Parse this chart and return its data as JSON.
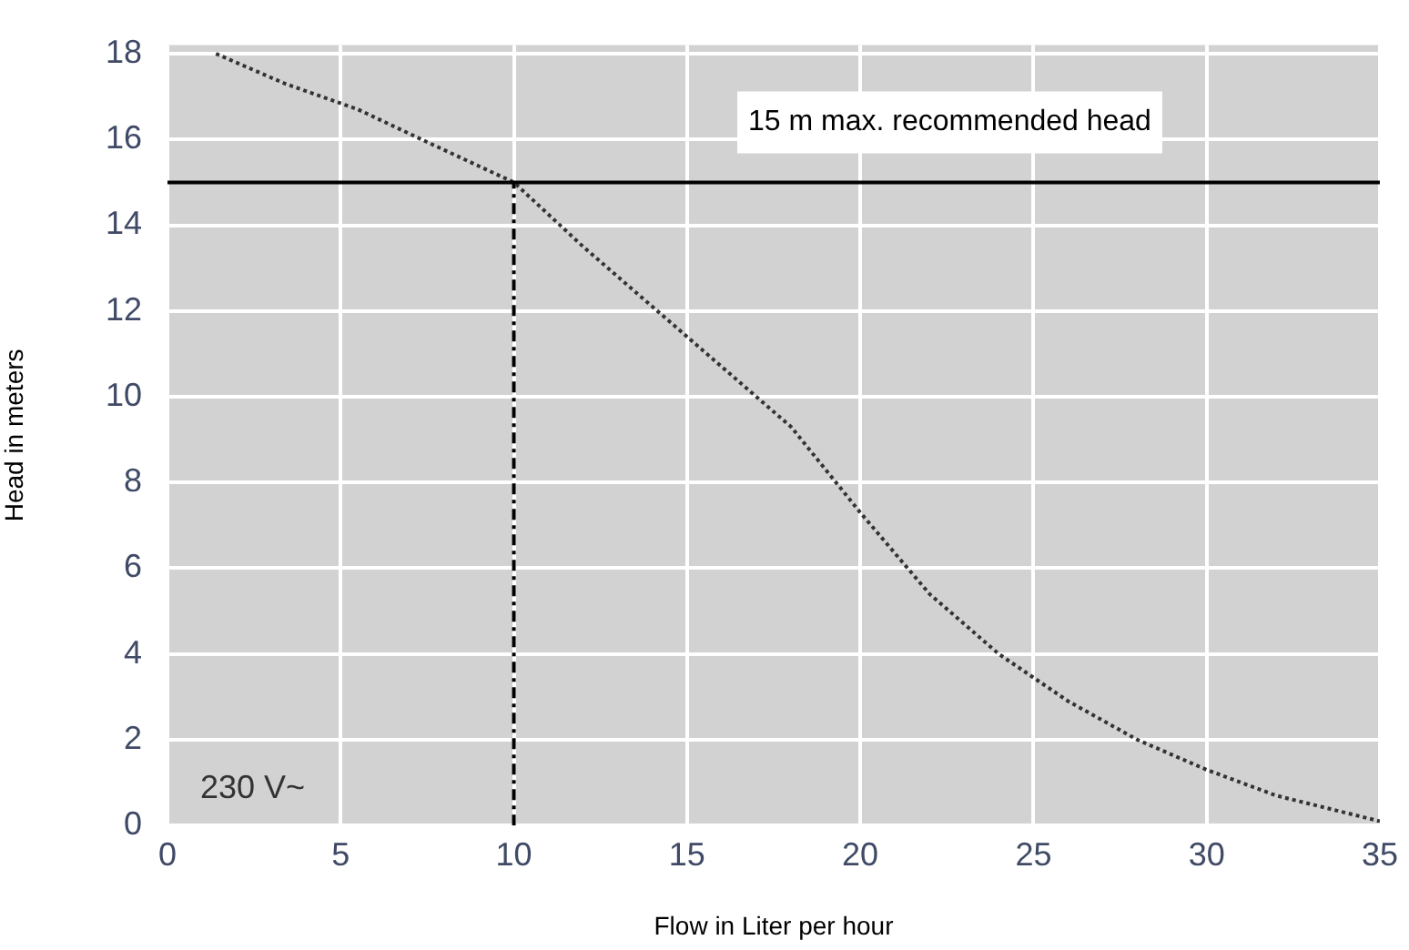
{
  "chart_data": {
    "type": "line",
    "xlabel": "Flow in Liter per hour",
    "ylabel": "Head in meters",
    "xlim": [
      0,
      35
    ],
    "xticks": [
      0,
      5,
      10,
      15,
      20,
      25,
      30,
      35
    ],
    "ylim": [
      0,
      18.2
    ],
    "yticks": [
      0,
      2,
      4,
      6,
      8,
      10,
      12,
      14,
      16,
      18
    ],
    "grid": true,
    "marker": "none",
    "series": [
      {
        "color": "#333333",
        "line_style": "dotted",
        "x": [
          1.4,
          3.4,
          5.5,
          7.6,
          10,
          12,
          14,
          16,
          18,
          20,
          22,
          24,
          26,
          28,
          30,
          32,
          35
        ],
        "values": [
          18,
          17.3,
          16.7,
          15.9,
          15,
          13.5,
          12.1,
          10.7,
          9.3,
          7.3,
          5.4,
          4.0,
          2.9,
          2.0,
          1.3,
          0.7,
          0.1
        ]
      },
      {
        "color": "#000000",
        "line_style": "dashed",
        "x": [
          10,
          10
        ],
        "values": [
          0,
          15
        ]
      }
    ],
    "ref_lines": [
      {
        "axis": "y",
        "value": 15,
        "label": "15 m max. recommended head",
        "color": "#000000",
        "line_style": "solid"
      }
    ],
    "annotations": [
      "230 V~"
    ]
  }
}
